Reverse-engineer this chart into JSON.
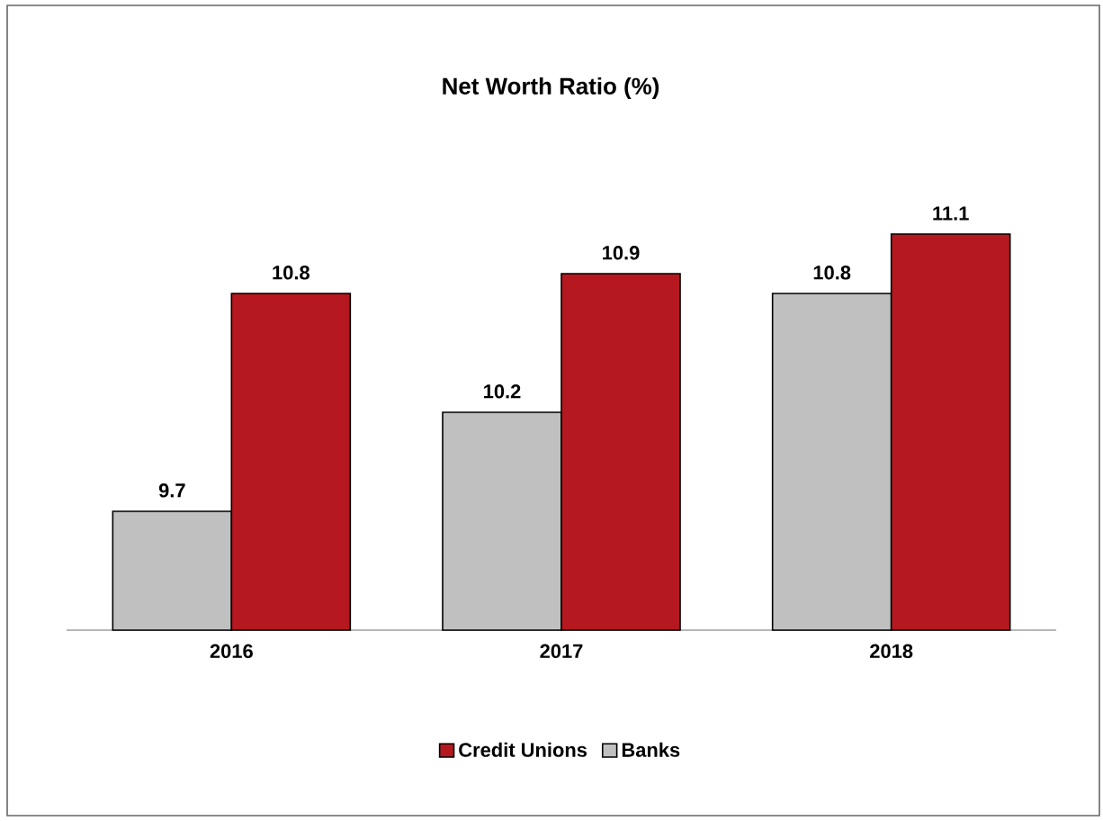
{
  "chart_data": {
    "type": "bar",
    "title": "Net Worth Ratio (%)",
    "categories": [
      "2016",
      "2017",
      "2018"
    ],
    "series": [
      {
        "name": "Banks",
        "color": "#c0c0c0",
        "values": [
          9.7,
          10.2,
          10.8
        ]
      },
      {
        "name": "Credit Unions",
        "color": "#b5191f",
        "values": [
          10.8,
          10.9,
          11.1
        ]
      }
    ],
    "ylim": [
      9.1,
      11.1
    ],
    "data_labels": true,
    "legend": "bottom",
    "tick_labels": "x"
  }
}
